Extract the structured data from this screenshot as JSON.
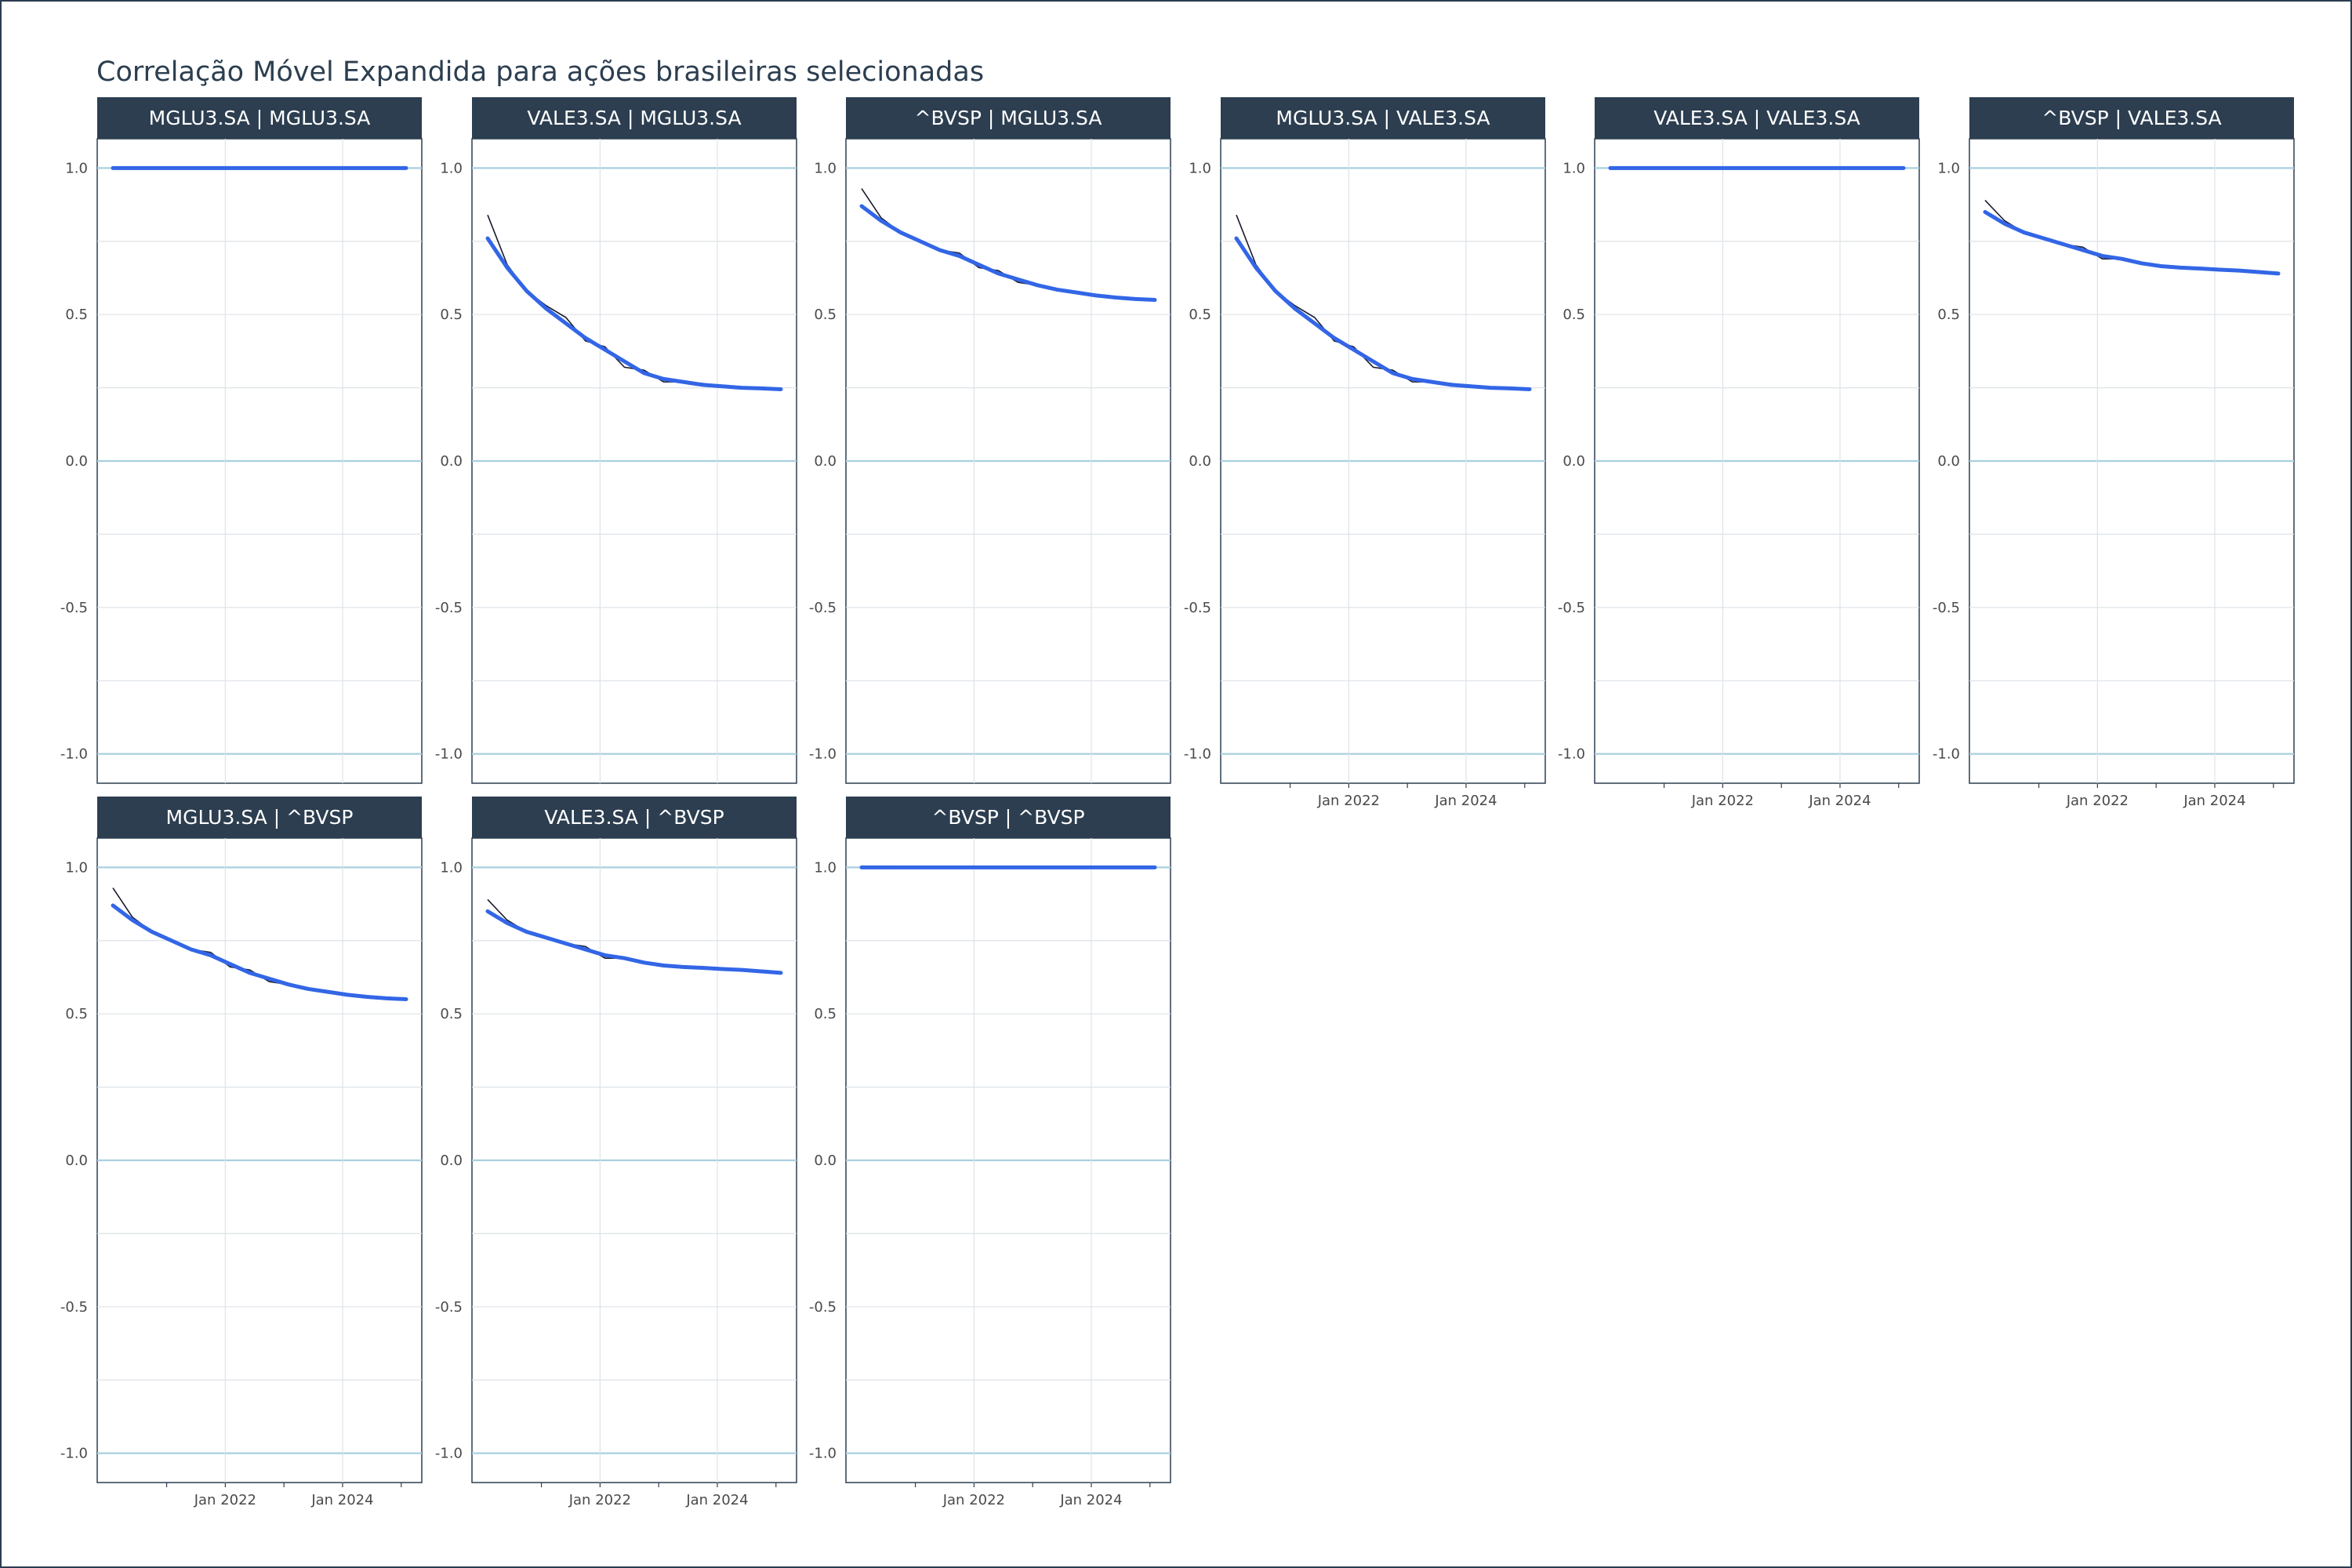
{
  "chart_data": {
    "type": "line",
    "title": "Correlação Móvel Expandida para ações brasileiras selecionadas",
    "xlabel": "",
    "ylabel": "",
    "ylim": [
      -1.1,
      1.1
    ],
    "y_ticks": [
      "1.0",
      "0.5",
      "0.0",
      "-0.5",
      "-1.0"
    ],
    "y_tick_values": [
      1.0,
      0.5,
      0.0,
      -0.5,
      -1.0
    ],
    "x_range": [
      "2020-02",
      "2025-02"
    ],
    "x_ticks": [
      "Jan 2022",
      "Jan 2024"
    ],
    "x_tick_dates": [
      "2022-01",
      "2024-01"
    ],
    "grid": true,
    "colors": {
      "smooth": "#3366e6",
      "raw": "#1a1a2e",
      "strip": "#2c3e50",
      "reference_line": "#a9cfdf",
      "grid": "#dde3e8",
      "border": "#2c3e50"
    },
    "series_x": [
      "2020-02",
      "2020-06",
      "2020-10",
      "2021-02",
      "2021-06",
      "2021-10",
      "2022-02",
      "2022-06",
      "2022-10",
      "2023-02",
      "2023-06",
      "2023-10",
      "2024-02",
      "2024-06",
      "2024-10",
      "2025-02"
    ],
    "panels": [
      {
        "label": "MGLU3.SA | MGLU3.SA",
        "show_x_ticks": false,
        "smooth": [
          1.0,
          1.0,
          1.0,
          1.0,
          1.0,
          1.0,
          1.0,
          1.0,
          1.0,
          1.0,
          1.0,
          1.0,
          1.0,
          1.0,
          1.0,
          1.0
        ],
        "raw": [
          1.0,
          1.0,
          1.0,
          1.0,
          1.0,
          1.0,
          1.0,
          1.0,
          1.0,
          1.0,
          1.0,
          1.0,
          1.0,
          1.0,
          1.0,
          1.0
        ]
      },
      {
        "label": "VALE3.SA | MGLU3.SA",
        "show_x_ticks": false,
        "smooth": [
          0.76,
          0.66,
          0.58,
          0.52,
          0.47,
          0.42,
          0.38,
          0.34,
          0.3,
          0.28,
          0.27,
          0.26,
          0.255,
          0.25,
          0.248,
          0.245
        ],
        "raw": [
          0.84,
          0.67,
          0.58,
          0.53,
          0.49,
          0.41,
          0.39,
          0.32,
          0.31,
          0.27,
          0.27,
          0.265,
          0.255,
          0.25,
          0.248,
          0.245
        ]
      },
      {
        "label": "^BVSP | MGLU3.SA",
        "show_x_ticks": false,
        "smooth": [
          0.87,
          0.82,
          0.78,
          0.75,
          0.72,
          0.7,
          0.67,
          0.64,
          0.62,
          0.6,
          0.585,
          0.575,
          0.565,
          0.558,
          0.553,
          0.55
        ],
        "raw": [
          0.93,
          0.83,
          0.78,
          0.75,
          0.72,
          0.71,
          0.66,
          0.65,
          0.61,
          0.6,
          0.585,
          0.575,
          0.565,
          0.558,
          0.553,
          0.55
        ]
      },
      {
        "label": "MGLU3.SA | VALE3.SA",
        "show_x_ticks": true,
        "smooth": [
          0.76,
          0.66,
          0.58,
          0.52,
          0.47,
          0.42,
          0.38,
          0.34,
          0.3,
          0.28,
          0.27,
          0.26,
          0.255,
          0.25,
          0.248,
          0.245
        ],
        "raw": [
          0.84,
          0.67,
          0.58,
          0.53,
          0.49,
          0.41,
          0.39,
          0.32,
          0.31,
          0.27,
          0.27,
          0.265,
          0.255,
          0.25,
          0.248,
          0.245
        ]
      },
      {
        "label": "VALE3.SA | VALE3.SA",
        "show_x_ticks": true,
        "smooth": [
          1.0,
          1.0,
          1.0,
          1.0,
          1.0,
          1.0,
          1.0,
          1.0,
          1.0,
          1.0,
          1.0,
          1.0,
          1.0,
          1.0,
          1.0,
          1.0
        ],
        "raw": [
          1.0,
          1.0,
          1.0,
          1.0,
          1.0,
          1.0,
          1.0,
          1.0,
          1.0,
          1.0,
          1.0,
          1.0,
          1.0,
          1.0,
          1.0,
          1.0
        ]
      },
      {
        "label": "^BVSP | VALE3.SA",
        "show_x_ticks": true,
        "smooth": [
          0.85,
          0.81,
          0.78,
          0.76,
          0.74,
          0.72,
          0.7,
          0.69,
          0.675,
          0.665,
          0.66,
          0.657,
          0.653,
          0.65,
          0.645,
          0.64
        ],
        "raw": [
          0.89,
          0.82,
          0.78,
          0.76,
          0.74,
          0.73,
          0.69,
          0.69,
          0.675,
          0.665,
          0.66,
          0.657,
          0.653,
          0.65,
          0.645,
          0.64
        ]
      },
      {
        "label": "MGLU3.SA | ^BVSP",
        "show_x_ticks": true,
        "smooth": [
          0.87,
          0.82,
          0.78,
          0.75,
          0.72,
          0.7,
          0.67,
          0.64,
          0.62,
          0.6,
          0.585,
          0.575,
          0.565,
          0.558,
          0.553,
          0.55
        ],
        "raw": [
          0.93,
          0.83,
          0.78,
          0.75,
          0.72,
          0.71,
          0.66,
          0.65,
          0.61,
          0.6,
          0.585,
          0.575,
          0.565,
          0.558,
          0.553,
          0.55
        ]
      },
      {
        "label": "VALE3.SA | ^BVSP",
        "show_x_ticks": true,
        "smooth": [
          0.85,
          0.81,
          0.78,
          0.76,
          0.74,
          0.72,
          0.7,
          0.69,
          0.675,
          0.665,
          0.66,
          0.657,
          0.653,
          0.65,
          0.645,
          0.64
        ],
        "raw": [
          0.89,
          0.82,
          0.78,
          0.76,
          0.74,
          0.73,
          0.69,
          0.69,
          0.675,
          0.665,
          0.66,
          0.657,
          0.653,
          0.65,
          0.645,
          0.64
        ]
      },
      {
        "label": "^BVSP | ^BVSP",
        "show_x_ticks": true,
        "smooth": [
          1.0,
          1.0,
          1.0,
          1.0,
          1.0,
          1.0,
          1.0,
          1.0,
          1.0,
          1.0,
          1.0,
          1.0,
          1.0,
          1.0,
          1.0,
          1.0
        ],
        "raw": [
          1.0,
          1.0,
          1.0,
          1.0,
          1.0,
          1.0,
          1.0,
          1.0,
          1.0,
          1.0,
          1.0,
          1.0,
          1.0,
          1.0,
          1.0,
          1.0
        ]
      }
    ]
  }
}
